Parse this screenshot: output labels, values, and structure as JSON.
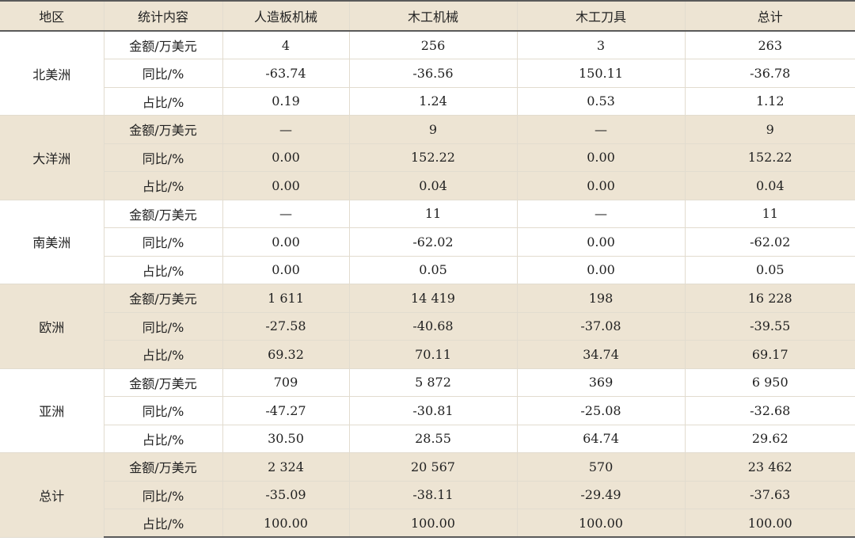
{
  "headers": [
    "地区",
    "统计内容",
    "人造板机械",
    "木工机械",
    "木工刀具",
    "总计"
  ],
  "groups": [
    {
      "region": "北美洲",
      "shade": "white",
      "rows": [
        {
          "label": "金额/万美元",
          "values": [
            "4",
            "256",
            "3",
            "263"
          ]
        },
        {
          "label": "同比/%",
          "values": [
            "-63.74",
            "-36.56",
            "150.11",
            "-36.78"
          ]
        },
        {
          "label": "占比/%",
          "values": [
            "0.19",
            "1.24",
            "0.53",
            "1.12"
          ]
        }
      ]
    },
    {
      "region": "大洋洲",
      "shade": "band",
      "rows": [
        {
          "label": "金额/万美元",
          "values": [
            "—",
            "9",
            "—",
            "9"
          ]
        },
        {
          "label": "同比/%",
          "values": [
            "0.00",
            "152.22",
            "0.00",
            "152.22"
          ]
        },
        {
          "label": "占比/%",
          "values": [
            "0.00",
            "0.04",
            "0.00",
            "0.04"
          ]
        }
      ]
    },
    {
      "region": "南美洲",
      "shade": "white",
      "rows": [
        {
          "label": "金额/万美元",
          "values": [
            "—",
            "11",
            "—",
            "11"
          ]
        },
        {
          "label": "同比/%",
          "values": [
            "0.00",
            "-62.02",
            "0.00",
            "-62.02"
          ]
        },
        {
          "label": "占比/%",
          "values": [
            "0.00",
            "0.05",
            "0.00",
            "0.05"
          ]
        }
      ]
    },
    {
      "region": "欧洲",
      "shade": "band",
      "rows": [
        {
          "label": "金额/万美元",
          "values": [
            "1 611",
            "14 419",
            "198",
            "16 228"
          ]
        },
        {
          "label": "同比/%",
          "values": [
            "-27.58",
            "-40.68",
            "-37.08",
            "-39.55"
          ]
        },
        {
          "label": "占比/%",
          "values": [
            "69.32",
            "70.11",
            "34.74",
            "69.17"
          ]
        }
      ]
    },
    {
      "region": "亚洲",
      "shade": "white",
      "rows": [
        {
          "label": "金额/万美元",
          "values": [
            "709",
            "5 872",
            "369",
            "6 950"
          ]
        },
        {
          "label": "同比/%",
          "values": [
            "-47.27",
            "-30.81",
            "-25.08",
            "-32.68"
          ]
        },
        {
          "label": "占比/%",
          "values": [
            "30.50",
            "28.55",
            "64.74",
            "29.62"
          ]
        }
      ]
    },
    {
      "region": "总计",
      "shade": "band",
      "rows": [
        {
          "label": "金额/万美元",
          "values": [
            "2 324",
            "20 567",
            "570",
            "23 462"
          ]
        },
        {
          "label": "同比/%",
          "values": [
            "-35.09",
            "-38.11",
            "-29.49",
            "-37.63"
          ]
        },
        {
          "label": "占比/%",
          "values": [
            "100.00",
            "100.00",
            "100.00",
            "100.00"
          ]
        }
      ]
    }
  ],
  "colors": {
    "band": "#ede4d3",
    "grid": "#e2dccf",
    "rule": "#5a5a5a",
    "text": "#222222"
  }
}
